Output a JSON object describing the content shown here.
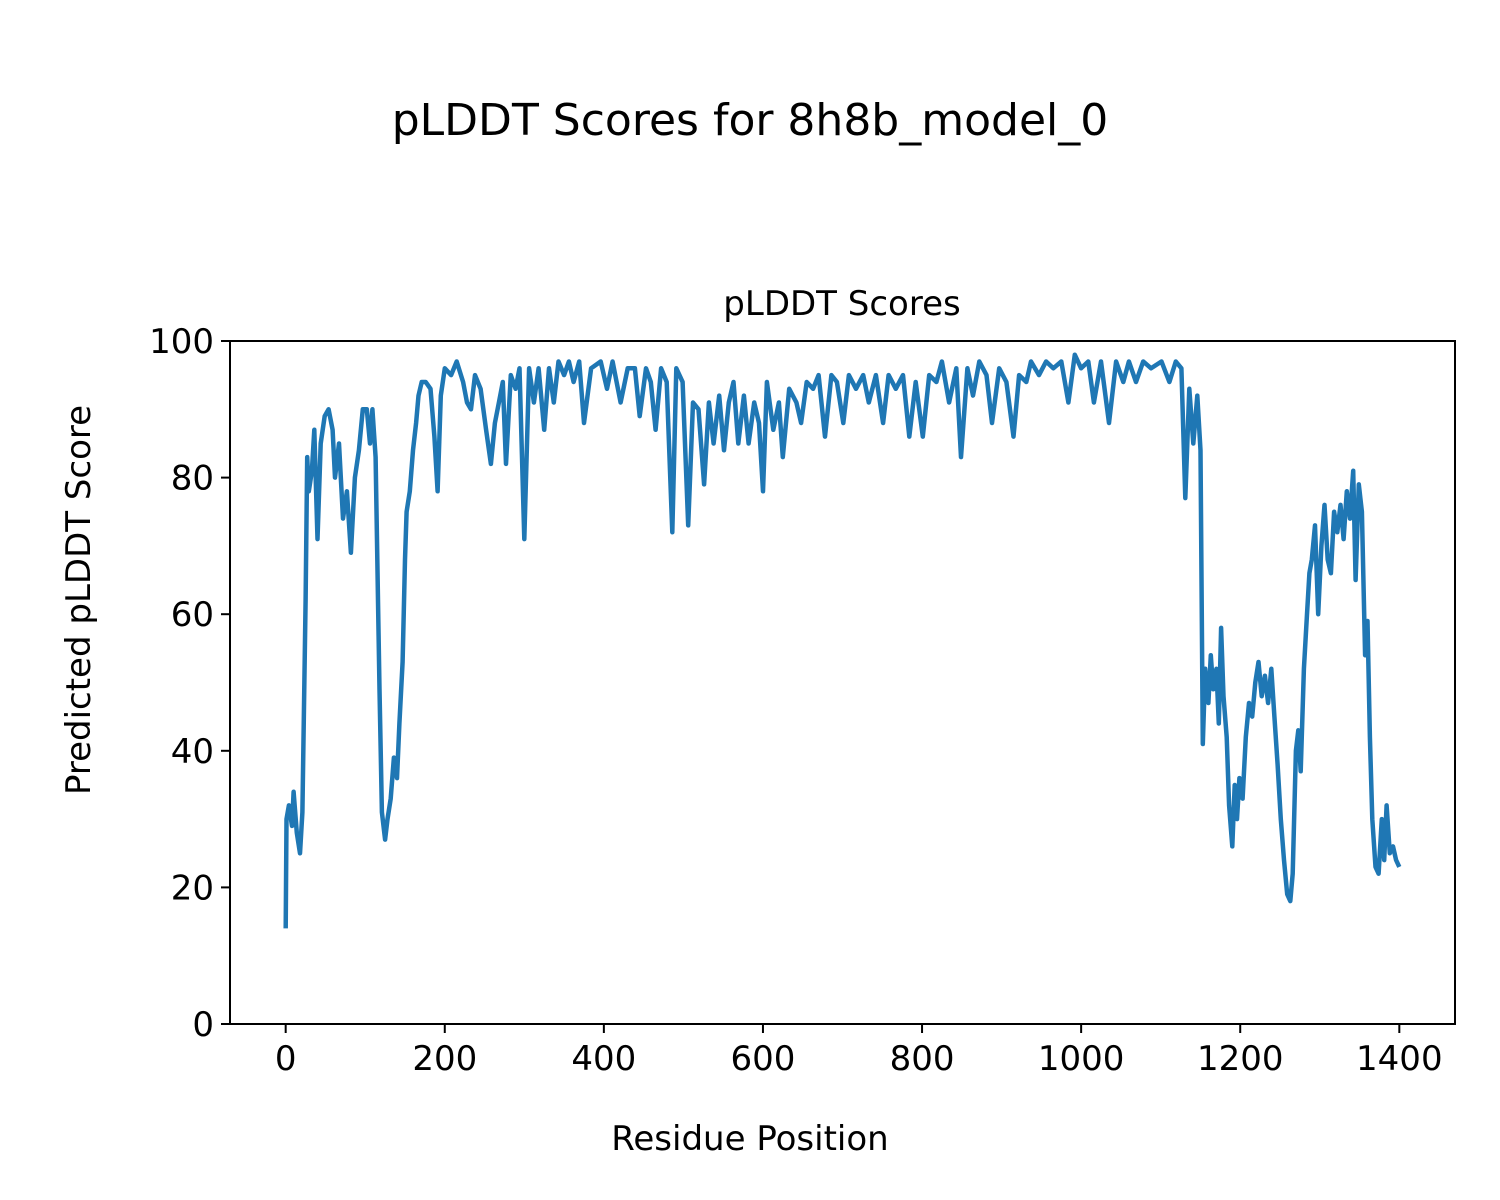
{
  "chart_data": {
    "type": "line",
    "title": "pLDDT Scores for 8h8b_model_0",
    "subtitle": "pLDDT Scores",
    "xlabel": "Residue Position",
    "ylabel": "Predicted pLDDT Score",
    "xlim": [
      -70,
      1470
    ],
    "ylim": [
      0,
      100
    ],
    "xticks": [
      0,
      200,
      400,
      600,
      800,
      1000,
      1200,
      1400
    ],
    "yticks": [
      0,
      20,
      40,
      60,
      80,
      100
    ],
    "grid": false,
    "series": [
      {
        "name": "pLDDT",
        "color": "#1f77b4",
        "points": [
          [
            0,
            14
          ],
          [
            1,
            30
          ],
          [
            4,
            32
          ],
          [
            8,
            29
          ],
          [
            10,
            34
          ],
          [
            14,
            28
          ],
          [
            18,
            25
          ],
          [
            21,
            31
          ],
          [
            25,
            62
          ],
          [
            27,
            83
          ],
          [
            29,
            78
          ],
          [
            33,
            81
          ],
          [
            36,
            87
          ],
          [
            40,
            71
          ],
          [
            44,
            85
          ],
          [
            49,
            89
          ],
          [
            54,
            90
          ],
          [
            59,
            87
          ],
          [
            62,
            80
          ],
          [
            67,
            85
          ],
          [
            72,
            74
          ],
          [
            77,
            78
          ],
          [
            82,
            69
          ],
          [
            87,
            80
          ],
          [
            92,
            84
          ],
          [
            97,
            90
          ],
          [
            102,
            90
          ],
          [
            106,
            85
          ],
          [
            109,
            90
          ],
          [
            113,
            83
          ],
          [
            116,
            62
          ],
          [
            118,
            49
          ],
          [
            121,
            31
          ],
          [
            125,
            27
          ],
          [
            128,
            30
          ],
          [
            132,
            33
          ],
          [
            136,
            39
          ],
          [
            140,
            36
          ],
          [
            143,
            44
          ],
          [
            147,
            53
          ],
          [
            150,
            68
          ],
          [
            152,
            75
          ],
          [
            156,
            78
          ],
          [
            160,
            84
          ],
          [
            164,
            88
          ],
          [
            167,
            92
          ],
          [
            171,
            94
          ],
          [
            176,
            94
          ],
          [
            182,
            93
          ],
          [
            187,
            86
          ],
          [
            191,
            78
          ],
          [
            195,
            92
          ],
          [
            200,
            96
          ],
          [
            208,
            95
          ],
          [
            215,
            97
          ],
          [
            223,
            94
          ],
          [
            228,
            91
          ],
          [
            233,
            90
          ],
          [
            238,
            95
          ],
          [
            245,
            93
          ],
          [
            252,
            87
          ],
          [
            258,
            82
          ],
          [
            263,
            88
          ],
          [
            268,
            91
          ],
          [
            273,
            94
          ],
          [
            277,
            82
          ],
          [
            283,
            95
          ],
          [
            289,
            93
          ],
          [
            294,
            96
          ],
          [
            300,
            71
          ],
          [
            306,
            96
          ],
          [
            312,
            91
          ],
          [
            318,
            96
          ],
          [
            325,
            87
          ],
          [
            331,
            96
          ],
          [
            337,
            91
          ],
          [
            343,
            97
          ],
          [
            350,
            95
          ],
          [
            356,
            97
          ],
          [
            362,
            94
          ],
          [
            369,
            97
          ],
          [
            375,
            88
          ],
          [
            384,
            96
          ],
          [
            396,
            97
          ],
          [
            404,
            93
          ],
          [
            411,
            97
          ],
          [
            421,
            91
          ],
          [
            430,
            96
          ],
          [
            439,
            96
          ],
          [
            445,
            89
          ],
          [
            453,
            96
          ],
          [
            459,
            94
          ],
          [
            465,
            87
          ],
          [
            472,
            96
          ],
          [
            479,
            94
          ],
          [
            486,
            72
          ],
          [
            491,
            96
          ],
          [
            499,
            94
          ],
          [
            506,
            73
          ],
          [
            512,
            91
          ],
          [
            519,
            90
          ],
          [
            526,
            79
          ],
          [
            532,
            91
          ],
          [
            538,
            85
          ],
          [
            545,
            92
          ],
          [
            551,
            84
          ],
          [
            557,
            91
          ],
          [
            563,
            94
          ],
          [
            569,
            85
          ],
          [
            576,
            92
          ],
          [
            582,
            85
          ],
          [
            589,
            91
          ],
          [
            595,
            88
          ],
          [
            600,
            78
          ],
          [
            605,
            94
          ],
          [
            613,
            87
          ],
          [
            620,
            91
          ],
          [
            625,
            83
          ],
          [
            633,
            93
          ],
          [
            642,
            91
          ],
          [
            648,
            88
          ],
          [
            655,
            94
          ],
          [
            663,
            93
          ],
          [
            670,
            95
          ],
          [
            678,
            86
          ],
          [
            686,
            95
          ],
          [
            693,
            94
          ],
          [
            701,
            88
          ],
          [
            708,
            95
          ],
          [
            717,
            93
          ],
          [
            726,
            95
          ],
          [
            733,
            91
          ],
          [
            742,
            95
          ],
          [
            751,
            88
          ],
          [
            758,
            95
          ],
          [
            767,
            93
          ],
          [
            776,
            95
          ],
          [
            784,
            86
          ],
          [
            792,
            94
          ],
          [
            801,
            86
          ],
          [
            809,
            95
          ],
          [
            818,
            94
          ],
          [
            825,
            97
          ],
          [
            834,
            91
          ],
          [
            843,
            96
          ],
          [
            849,
            83
          ],
          [
            857,
            96
          ],
          [
            864,
            92
          ],
          [
            872,
            97
          ],
          [
            881,
            95
          ],
          [
            888,
            88
          ],
          [
            897,
            96
          ],
          [
            906,
            94
          ],
          [
            915,
            86
          ],
          [
            922,
            95
          ],
          [
            931,
            94
          ],
          [
            937,
            97
          ],
          [
            947,
            95
          ],
          [
            956,
            97
          ],
          [
            965,
            96
          ],
          [
            975,
            97
          ],
          [
            984,
            91
          ],
          [
            992,
            98
          ],
          [
            1000,
            96
          ],
          [
            1009,
            97
          ],
          [
            1016,
            91
          ],
          [
            1025,
            97
          ],
          [
            1035,
            88
          ],
          [
            1044,
            97
          ],
          [
            1053,
            94
          ],
          [
            1060,
            97
          ],
          [
            1069,
            94
          ],
          [
            1078,
            97
          ],
          [
            1088,
            96
          ],
          [
            1101,
            97
          ],
          [
            1111,
            94
          ],
          [
            1119,
            97
          ],
          [
            1126,
            96
          ],
          [
            1131,
            77
          ],
          [
            1136,
            93
          ],
          [
            1141,
            85
          ],
          [
            1146,
            92
          ],
          [
            1150,
            84
          ],
          [
            1153,
            41
          ],
          [
            1156,
            52
          ],
          [
            1160,
            47
          ],
          [
            1163,
            54
          ],
          [
            1166,
            49
          ],
          [
            1170,
            52
          ],
          [
            1173,
            44
          ],
          [
            1176,
            58
          ],
          [
            1179,
            48
          ],
          [
            1183,
            42
          ],
          [
            1186,
            32
          ],
          [
            1190,
            26
          ],
          [
            1193,
            35
          ],
          [
            1196,
            30
          ],
          [
            1199,
            36
          ],
          [
            1203,
            33
          ],
          [
            1207,
            42
          ],
          [
            1211,
            47
          ],
          [
            1215,
            45
          ],
          [
            1219,
            50
          ],
          [
            1223,
            53
          ],
          [
            1227,
            48
          ],
          [
            1231,
            51
          ],
          [
            1235,
            47
          ],
          [
            1239,
            52
          ],
          [
            1243,
            45
          ],
          [
            1247,
            38
          ],
          [
            1251,
            30
          ],
          [
            1255,
            24
          ],
          [
            1259,
            19
          ],
          [
            1263,
            18
          ],
          [
            1266,
            22
          ],
          [
            1270,
            40
          ],
          [
            1273,
            43
          ],
          [
            1276,
            37
          ],
          [
            1280,
            52
          ],
          [
            1284,
            60
          ],
          [
            1287,
            66
          ],
          [
            1290,
            68
          ],
          [
            1294,
            73
          ],
          [
            1298,
            60
          ],
          [
            1302,
            70
          ],
          [
            1306,
            76
          ],
          [
            1310,
            68
          ],
          [
            1314,
            66
          ],
          [
            1318,
            75
          ],
          [
            1322,
            72
          ],
          [
            1326,
            76
          ],
          [
            1330,
            71
          ],
          [
            1334,
            78
          ],
          [
            1338,
            74
          ],
          [
            1342,
            81
          ],
          [
            1345,
            65
          ],
          [
            1349,
            79
          ],
          [
            1353,
            75
          ],
          [
            1357,
            54
          ],
          [
            1360,
            59
          ],
          [
            1363,
            42
          ],
          [
            1366,
            30
          ],
          [
            1370,
            23
          ],
          [
            1374,
            22
          ],
          [
            1378,
            30
          ],
          [
            1381,
            24
          ],
          [
            1384,
            32
          ],
          [
            1388,
            25
          ],
          [
            1392,
            26
          ],
          [
            1396,
            24
          ],
          [
            1400,
            23
          ]
        ]
      }
    ]
  }
}
